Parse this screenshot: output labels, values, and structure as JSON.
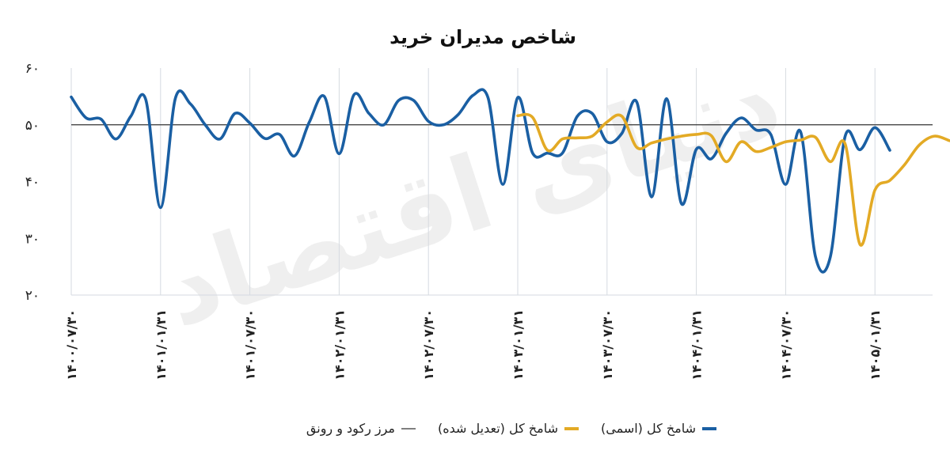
{
  "chart_data": {
    "type": "line",
    "title": "شاخص مدیران خرید",
    "watermark": "دنیای اقتصاد",
    "ylim": [
      20,
      60
    ],
    "y_ticks": [
      {
        "value": 60,
        "label": "۶۰"
      },
      {
        "value": 50,
        "label": "۵۰"
      },
      {
        "value": 40,
        "label": "۴۰"
      },
      {
        "value": 30,
        "label": "۳۰"
      },
      {
        "value": 20,
        "label": "۲۰"
      }
    ],
    "x_ticks": [
      {
        "index": 0,
        "label": "۱۴۰۰/۰۷/۳۰"
      },
      {
        "index": 6,
        "label": "۱۴۰۱/۰۱/۳۱"
      },
      {
        "index": 12,
        "label": "۱۴۰۱/۰۷/۳۰"
      },
      {
        "index": 18,
        "label": "۱۴۰۲/۰۱/۳۱"
      },
      {
        "index": 24,
        "label": "۱۴۰۲/۰۷/۳۰"
      },
      {
        "index": 30,
        "label": "۱۴۰۳/۰۱/۳۱"
      },
      {
        "index": 36,
        "label": "۱۴۰۳/۰۷/۳۰"
      },
      {
        "index": 42,
        "label": "۱۴۰۴/۰۱/۳۱"
      },
      {
        "index": 48,
        "label": "۱۴۰۴/۰۷/۳۰"
      },
      {
        "index": 54,
        "label": "۱۴۰۵/۰۱/۳۱"
      }
    ],
    "reference_line": {
      "name": "مرز رکود و رونق",
      "value": 50,
      "color": "#333333"
    },
    "series": [
      {
        "name": "شامخ کل (اسمی)",
        "color": "#1a5fa3",
        "start_index": 0,
        "values": [
          54.9,
          51.2,
          51.0,
          47.5,
          51.5,
          54.5,
          35.4,
          54.7,
          53.7,
          50.0,
          47.5,
          52.0,
          50.3,
          47.6,
          48.3,
          44.5,
          50.5,
          55.0,
          44.9,
          55.3,
          52.0,
          50.0,
          54.3,
          54.3,
          50.6,
          50.0,
          51.8,
          55.2,
          54.8,
          39.5,
          54.8,
          45.0,
          45.0,
          45.0,
          51.5,
          52.0,
          47.0,
          48.5,
          54.0,
          37.3,
          54.6,
          36.1,
          45.7,
          44.0,
          48.5,
          51.2,
          49.1,
          48.3,
          39.5,
          48.8,
          26.8,
          26.7,
          48.0,
          45.6,
          49.5,
          45.5
        ]
      },
      {
        "name": "شامخ کل (تعدیل شده)",
        "color": "#e3aa25",
        "start_index": 30,
        "values": [
          51.6,
          51.3,
          45.5,
          47.5,
          47.7,
          48.0,
          50.5,
          51.5,
          46.0,
          46.8,
          47.5,
          48.0,
          48.3,
          48.1,
          43.5,
          47.0,
          45.3,
          46.0,
          47.0,
          47.3,
          47.8,
          43.5,
          46.6,
          28.9,
          38.5,
          40.2,
          43.0,
          46.5,
          48.0,
          47.2
        ]
      }
    ],
    "legend": {
      "position": "bottom-center",
      "items": [
        {
          "label": "شامخ کل (اسمی)",
          "color": "#1a5fa3",
          "kind": "thick"
        },
        {
          "label": "شامخ کل (تعدیل شده)",
          "color": "#e3aa25",
          "kind": "thick"
        },
        {
          "label": "مرز رکود و رونق",
          "color": "#333333",
          "kind": "thin"
        }
      ]
    },
    "grid": {
      "vertical_at_ticks": true,
      "horizontal": false
    }
  }
}
